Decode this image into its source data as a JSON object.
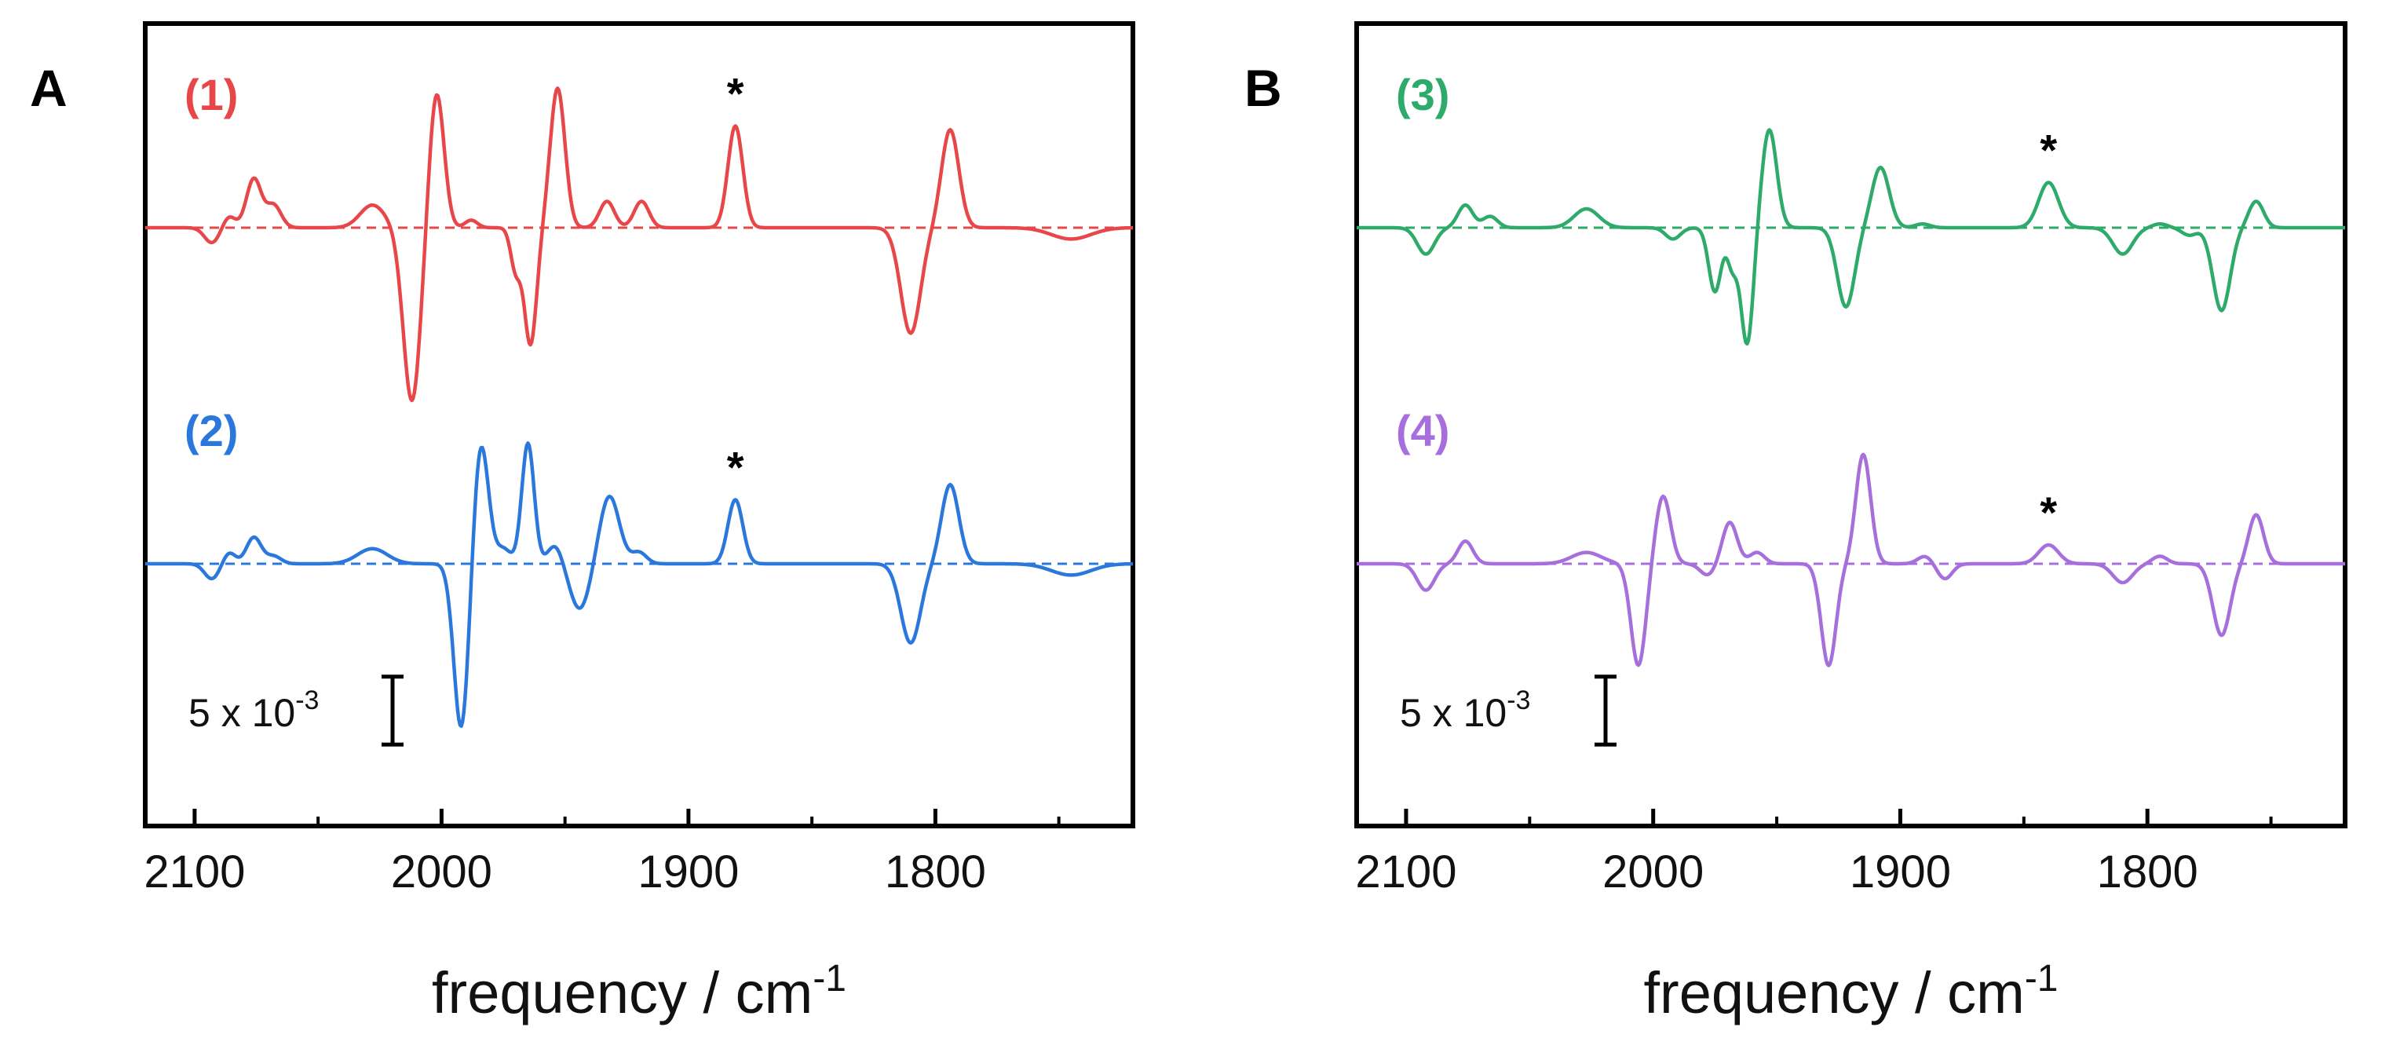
{
  "chart_data": [
    {
      "type": "line",
      "panel_label": "A",
      "xlabel": "frequency / cm",
      "xlabel_superscript": "-1",
      "ylabel": "",
      "xlim": [
        2120,
        1720
      ],
      "x_ticks": [
        2100,
        2000,
        1900,
        1800
      ],
      "x_tick_labels": [
        "2100",
        "2000",
        "1900",
        "1800"
      ],
      "scale_bar": {
        "text": "5 x 10",
        "exponent": "-3",
        "value": 0.005
      },
      "series": [
        {
          "name": "(1)",
          "color": "#e8474a",
          "offset": 0.0065,
          "marker": {
            "text": "*",
            "x": 1881
          },
          "peaks": [
            [
              2093,
              -0.0004,
              3
            ],
            [
              2086,
              0.0003,
              2.5
            ],
            [
              2076,
              0.0013,
              3
            ],
            [
              2068,
              0.0006,
              3
            ],
            [
              2028,
              0.0006,
              5
            ],
            [
              2012,
              -0.0046,
              3.5
            ],
            [
              2002,
              0.0036,
              3
            ],
            [
              1988,
              0.0002,
              2.5
            ],
            [
              1970,
              -0.0011,
              2
            ],
            [
              1964,
              -0.0031,
              2.5
            ],
            [
              1953,
              0.0037,
              3
            ],
            [
              1933,
              0.0007,
              3
            ],
            [
              1919,
              0.0007,
              3
            ],
            [
              1881,
              0.0027,
              3
            ],
            [
              1810,
              -0.0028,
              4
            ],
            [
              1794,
              0.0026,
              3.5
            ],
            [
              1745,
              -0.0003,
              8
            ]
          ]
        },
        {
          "name": "(2)",
          "color": "#2b78dc",
          "offset": 0.0,
          "marker": {
            "text": "*",
            "x": 1881
          },
          "peaks": [
            [
              2093,
              -0.0004,
              3
            ],
            [
              2086,
              0.0003,
              2.5
            ],
            [
              2076,
              0.0007,
              3
            ],
            [
              2068,
              0.0002,
              3
            ],
            [
              2028,
              0.0004,
              6
            ],
            [
              1992,
              -0.0044,
              3
            ],
            [
              1984,
              0.0032,
              3
            ],
            [
              1975,
              0.0004,
              3
            ],
            [
              1965,
              0.0032,
              2.5
            ],
            [
              1954,
              0.0005,
              3
            ],
            [
              1944,
              -0.0012,
              4
            ],
            [
              1932,
              0.0018,
              4
            ],
            [
              1920,
              0.0003,
              3
            ],
            [
              1881,
              0.0017,
              3
            ],
            [
              1810,
              -0.0021,
              4
            ],
            [
              1794,
              0.0021,
              3.5
            ],
            [
              1745,
              -0.0003,
              8
            ]
          ]
        }
      ]
    },
    {
      "type": "line",
      "panel_label": "B",
      "xlabel": "frequency / cm",
      "xlabel_superscript": "-1",
      "ylabel": "",
      "xlim": [
        2120,
        1720
      ],
      "x_ticks": [
        2100,
        2000,
        1900,
        1800
      ],
      "x_tick_labels": [
        "2100",
        "2000",
        "1900",
        "1800"
      ],
      "scale_bar": {
        "text": "5 x 10",
        "exponent": "-3",
        "value": 0.005
      },
      "series": [
        {
          "name": "(3)",
          "color": "#2eaa6a",
          "offset": 0.0065,
          "marker": {
            "text": "*",
            "x": 1840
          },
          "peaks": [
            [
              2092,
              -0.0007,
              3.5
            ],
            [
              2076,
              0.0006,
              3
            ],
            [
              2066,
              0.0003,
              3
            ],
            [
              2027,
              0.0005,
              5
            ],
            [
              1992,
              -0.0003,
              3
            ],
            [
              1975,
              -0.0017,
              2.5
            ],
            [
              1968,
              -0.001,
              2
            ],
            [
              1962,
              -0.0031,
              2.5
            ],
            [
              1953,
              0.0026,
              3
            ],
            [
              1922,
              -0.0021,
              3.5
            ],
            [
              1908,
              0.0016,
              3.5
            ],
            [
              1891,
              0.0001,
              3
            ],
            [
              1840,
              0.0012,
              4
            ],
            [
              1810,
              -0.0007,
              4
            ],
            [
              1795,
              0.0001,
              3
            ],
            [
              1783,
              -0.0002,
              3
            ],
            [
              1770,
              -0.0022,
              3.5
            ],
            [
              1756,
              0.0007,
              3
            ]
          ]
        },
        {
          "name": "(4)",
          "color": "#a66fdb",
          "offset": 0.0,
          "marker": {
            "text": "*",
            "x": 1840
          },
          "peaks": [
            [
              2092,
              -0.0007,
              3.5
            ],
            [
              2076,
              0.0006,
              3
            ],
            [
              2027,
              0.0003,
              6
            ],
            [
              2006,
              -0.0027,
              3
            ],
            [
              1996,
              0.0018,
              3
            ],
            [
              1978,
              -0.0003,
              3
            ],
            [
              1969,
              0.0011,
              3
            ],
            [
              1958,
              0.0003,
              3
            ],
            [
              1929,
              -0.0027,
              3
            ],
            [
              1915,
              0.0029,
              3
            ],
            [
              1890,
              0.0002,
              3
            ],
            [
              1882,
              -0.0004,
              3
            ],
            [
              1840,
              0.0005,
              4
            ],
            [
              1810,
              -0.0005,
              4
            ],
            [
              1795,
              0.0002,
              3
            ],
            [
              1770,
              -0.0019,
              3.5
            ],
            [
              1756,
              0.0013,
              3
            ]
          ]
        }
      ]
    }
  ]
}
